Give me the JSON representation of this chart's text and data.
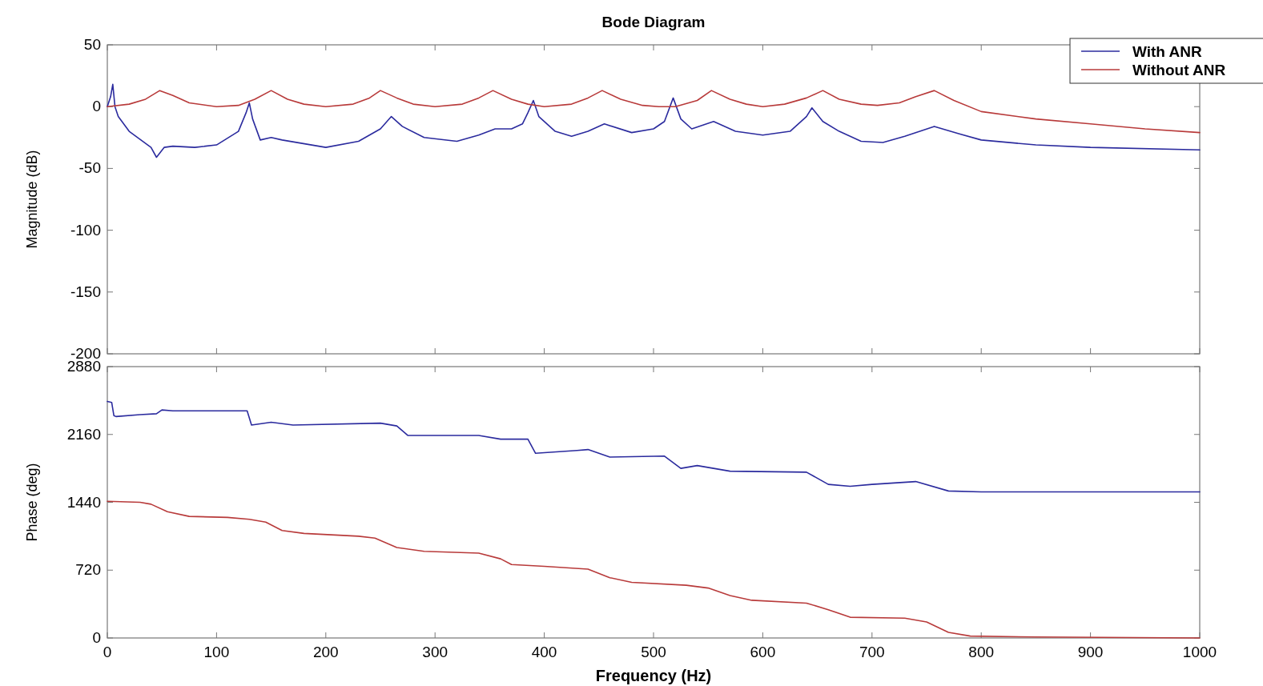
{
  "chart_data": [
    {
      "type": "line",
      "title": "Bode Diagram",
      "ylabel": "Magnitude (dB)",
      "xlim": [
        0,
        1000
      ],
      "xticks": [
        0,
        100,
        200,
        300,
        400,
        500,
        600,
        700,
        800,
        900,
        1000
      ],
      "ylim": [
        -200,
        50
      ],
      "yticks": [
        -200,
        -150,
        -100,
        -50,
        0,
        50
      ],
      "tick_labels": "y",
      "grid": false,
      "legend": "top right",
      "series": [
        {
          "name": "With ANR",
          "color": "#2b2b9e",
          "x": [
            0,
            3,
            5,
            7,
            10,
            20,
            40,
            45,
            52,
            60,
            80,
            100,
            120,
            127,
            130,
            133,
            140,
            150,
            160,
            200,
            230,
            250,
            260,
            270,
            290,
            320,
            340,
            355,
            370,
            380,
            385,
            390,
            395,
            410,
            425,
            440,
            455,
            480,
            500,
            510,
            518,
            525,
            535,
            555,
            575,
            600,
            625,
            640,
            645,
            655,
            670,
            690,
            710,
            730,
            757,
            780,
            800,
            850,
            900,
            1000
          ],
          "values": [
            0,
            8,
            18,
            0,
            -8,
            -20,
            -33,
            -41,
            -33,
            -32,
            -33,
            -31,
            -20,
            -5,
            3,
            -10,
            -27,
            -25,
            -27,
            -33,
            -28,
            -18,
            -8,
            -16,
            -25,
            -28,
            -23,
            -18,
            -18,
            -14,
            -5,
            5,
            -8,
            -20,
            -24,
            -20,
            -14,
            -21,
            -18,
            -12,
            7,
            -10,
            -18,
            -12,
            -20,
            -23,
            -20,
            -8,
            -1,
            -12,
            -20,
            -28,
            -29,
            -24,
            -16,
            -22,
            -27,
            -31,
            -33,
            -35
          ]
        },
        {
          "name": "Without ANR",
          "color": "#b83a3a",
          "x": [
            0,
            20,
            35,
            48,
            60,
            75,
            100,
            120,
            135,
            150,
            165,
            180,
            200,
            225,
            240,
            250,
            265,
            280,
            300,
            325,
            340,
            353,
            370,
            385,
            400,
            425,
            440,
            453,
            470,
            490,
            505,
            520,
            540,
            553,
            570,
            585,
            600,
            620,
            640,
            655,
            670,
            690,
            705,
            725,
            740,
            757,
            775,
            800,
            850,
            900,
            950,
            1000
          ],
          "values": [
            0,
            2,
            6,
            13,
            9,
            3,
            0,
            1,
            6,
            13,
            6,
            2,
            0,
            2,
            7,
            13,
            7,
            2,
            0,
            2,
            7,
            13,
            6,
            2,
            0,
            2,
            7,
            13,
            6,
            1,
            0,
            0,
            5,
            13,
            6,
            2,
            0,
            2,
            7,
            13,
            6,
            2,
            1,
            3,
            8,
            13,
            5,
            -4,
            -10,
            -14,
            -18,
            -21
          ]
        }
      ]
    },
    {
      "type": "line",
      "xlabel": "Frequency  (Hz)",
      "ylabel": "Phase (deg)",
      "xlim": [
        0,
        1000
      ],
      "xticks": [
        0,
        100,
        200,
        300,
        400,
        500,
        600,
        700,
        800,
        900,
        1000
      ],
      "ylim": [
        0,
        2880
      ],
      "yticks": [
        0,
        720,
        1440,
        2160,
        2880
      ],
      "grid": false,
      "series": [
        {
          "color": "#2b2b9e",
          "x": [
            0,
            4,
            6,
            8,
            30,
            45,
            50,
            60,
            100,
            128,
            132,
            150,
            170,
            250,
            265,
            275,
            340,
            360,
            385,
            392,
            430,
            440,
            460,
            510,
            525,
            540,
            570,
            640,
            660,
            680,
            700,
            740,
            770,
            800,
            1000
          ],
          "values": [
            2510,
            2500,
            2360,
            2350,
            2370,
            2380,
            2420,
            2410,
            2410,
            2410,
            2260,
            2290,
            2260,
            2280,
            2250,
            2150,
            2150,
            2110,
            2110,
            1960,
            1990,
            2000,
            1920,
            1930,
            1800,
            1830,
            1770,
            1760,
            1630,
            1610,
            1630,
            1660,
            1560,
            1550,
            1550
          ]
        },
        {
          "color": "#b83a3a",
          "x": [
            0,
            30,
            40,
            55,
            75,
            110,
            130,
            145,
            160,
            180,
            230,
            245,
            265,
            290,
            340,
            360,
            370,
            400,
            440,
            460,
            480,
            530,
            550,
            570,
            590,
            640,
            660,
            680,
            730,
            750,
            770,
            790,
            850,
            1000
          ],
          "values": [
            1450,
            1440,
            1420,
            1340,
            1290,
            1280,
            1260,
            1230,
            1140,
            1110,
            1080,
            1060,
            960,
            920,
            900,
            840,
            780,
            760,
            730,
            640,
            590,
            560,
            530,
            450,
            400,
            370,
            300,
            220,
            210,
            170,
            60,
            20,
            10,
            0
          ]
        }
      ]
    }
  ]
}
